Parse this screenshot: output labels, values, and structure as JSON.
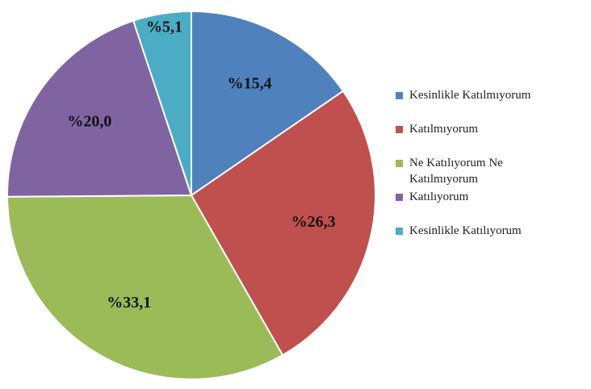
{
  "chart_data": {
    "type": "pie",
    "categories": [
      "Kesinlikle Katılmıyorum",
      "Katılmıyorum",
      "Ne Katılıyorum Ne Katılmıyorum",
      "Katılıyorum",
      "Kesinlikle Katılıyorum"
    ],
    "values": [
      15.4,
      26.3,
      33.1,
      20.0,
      5.1
    ],
    "value_labels": [
      "%15,4",
      "%26,3",
      "%33,1",
      "%20,0",
      "%5,1"
    ],
    "colors": [
      "#4f81bd",
      "#c0504d",
      "#9bbb59",
      "#8064a2",
      "#4bacc6"
    ],
    "legend": "right"
  }
}
